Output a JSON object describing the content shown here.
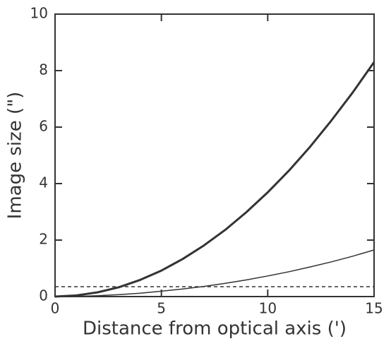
{
  "chart_data": {
    "type": "line",
    "xlabel": "Distance from optical axis (')",
    "ylabel": "Image size (\")",
    "x": [
      0,
      1,
      2,
      3,
      4,
      5,
      6,
      7,
      8,
      9,
      10,
      11,
      12,
      13,
      14,
      15
    ],
    "series": [
      {
        "color": "#333333",
        "width": 3,
        "values": [
          0,
          0.04,
          0.15,
          0.33,
          0.59,
          0.92,
          1.33,
          1.81,
          2.36,
          2.99,
          3.69,
          4.46,
          5.31,
          6.24,
          7.23,
          8.3
        ]
      },
      {
        "color": "#333333",
        "width": 1.5,
        "values": [
          0,
          0.01,
          0.03,
          0.07,
          0.12,
          0.19,
          0.27,
          0.36,
          0.47,
          0.59,
          0.73,
          0.88,
          1.05,
          1.23,
          1.43,
          1.65
        ]
      }
    ],
    "reference_line": {
      "value": 0.35,
      "style": "dashed",
      "color": "#333333"
    },
    "xlim": [
      0,
      15
    ],
    "xticks": [
      0,
      5,
      10,
      15
    ],
    "ylim": [
      0,
      10
    ],
    "yticks": [
      0,
      2,
      4,
      6,
      8,
      10
    ]
  }
}
